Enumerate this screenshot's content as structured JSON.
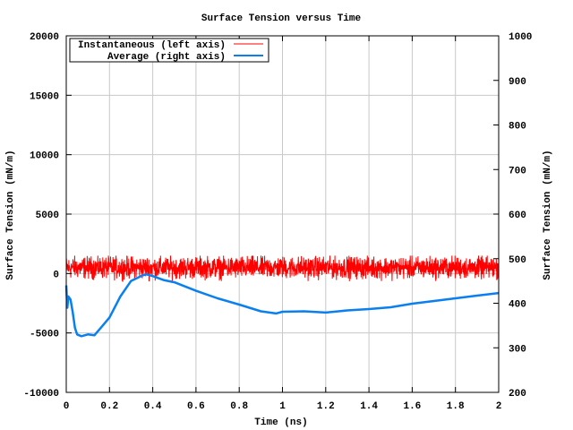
{
  "chart_data": {
    "type": "line",
    "title": "Surface Tension versus Time",
    "xlabel": "Time (ns)",
    "ylabel_left": "Surface Tension (mN/m)",
    "ylabel_right": "Surface Tension (mN/m)",
    "xlim": [
      0,
      2
    ],
    "ylim_left": [
      -10000,
      20000
    ],
    "ylim_right": [
      200,
      1000
    ],
    "x_ticks": [
      "0",
      "0.2",
      "0.4",
      "0.6",
      "0.8",
      "1",
      "1.2",
      "1.4",
      "1.6",
      "1.8",
      "2"
    ],
    "y_left_ticks": [
      "-10000",
      "-5000",
      "0",
      "5000",
      "10000",
      "15000",
      "20000"
    ],
    "y_right_ticks": [
      "200",
      "300",
      "400",
      "500",
      "600",
      "700",
      "800",
      "900",
      "1000"
    ],
    "grid": true,
    "legend_position": "top-left",
    "series": [
      {
        "name": "Instantaneous (left axis)",
        "axis": "left",
        "color": "#ff0000",
        "description_stats": {
          "mean": 500,
          "min": -700,
          "max": 1500,
          "samples": 2000
        }
      },
      {
        "name": "Average (right axis)",
        "axis": "right",
        "color": "#0a7ff0",
        "x": [
          0,
          0.005,
          0.01,
          0.02,
          0.03,
          0.04,
          0.05,
          0.07,
          0.1,
          0.13,
          0.16,
          0.2,
          0.25,
          0.3,
          0.35,
          0.37,
          0.4,
          0.45,
          0.5,
          0.6,
          0.7,
          0.8,
          0.9,
          0.97,
          1.0,
          1.1,
          1.2,
          1.3,
          1.4,
          1.5,
          1.6,
          1.7,
          1.8,
          1.9,
          2.0
        ],
        "y": [
          440,
          390,
          415,
          408,
          380,
          345,
          330,
          326,
          330,
          328,
          345,
          368,
          415,
          450,
          462,
          465,
          461,
          452,
          447,
          428,
          411,
          397,
          382,
          377,
          381,
          382,
          379,
          384,
          387,
          391,
          399,
          405,
          411,
          417,
          423
        ]
      }
    ]
  }
}
